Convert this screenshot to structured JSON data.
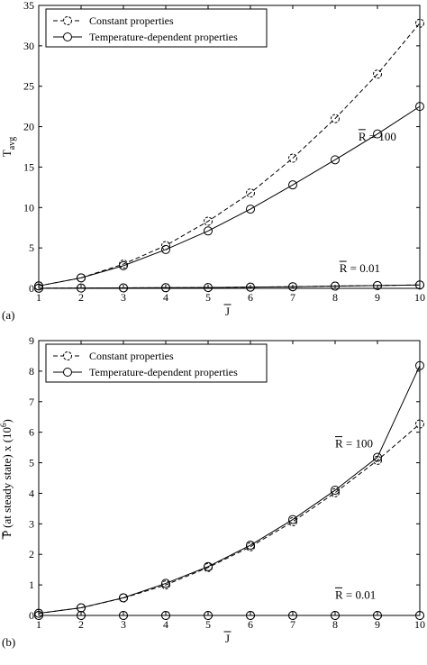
{
  "chart_data": [
    {
      "type": "line",
      "panel_label": "(a)",
      "xlabel": "J",
      "ylabel": "T",
      "ylabel_sub": "avg",
      "xlim": [
        1,
        10
      ],
      "ylim": [
        0,
        35
      ],
      "xticks": [
        1,
        2,
        3,
        4,
        5,
        6,
        7,
        8,
        9,
        10
      ],
      "yticks": [
        0,
        5,
        10,
        15,
        20,
        25,
        30,
        35
      ],
      "grid": false,
      "legend_position": "top-left",
      "x": [
        1,
        2,
        3,
        4,
        5,
        6,
        7,
        8,
        9,
        10
      ],
      "series": [
        {
          "name": "Constant properties",
          "style": "dashed",
          "group": "R100",
          "values": [
            0.3,
            1.3,
            3.0,
            5.3,
            8.3,
            11.8,
            16.1,
            21.0,
            26.5,
            32.8
          ]
        },
        {
          "name": "Temperature-dependent properties",
          "style": "solid",
          "group": "R100",
          "values": [
            0.3,
            1.3,
            2.8,
            4.8,
            7.1,
            9.8,
            12.8,
            15.9,
            19.1,
            22.5
          ]
        },
        {
          "style": "dashed",
          "group": "R001",
          "values": [
            0.02,
            0.04,
            0.06,
            0.08,
            0.1,
            0.15,
            0.2,
            0.28,
            0.35,
            0.42
          ]
        },
        {
          "style": "solid",
          "group": "R001",
          "values": [
            0.02,
            0.04,
            0.06,
            0.08,
            0.1,
            0.15,
            0.2,
            0.28,
            0.35,
            0.42
          ]
        }
      ],
      "annotations": [
        {
          "text": "R = 100",
          "x": 8.55,
          "y": 18.3
        },
        {
          "text": "R = 0.01",
          "x": 8.1,
          "y": 2.0
        }
      ]
    },
    {
      "type": "line",
      "panel_label": "(b)",
      "xlabel": "J",
      "ylabel": "P (at steady state) x (10",
      "ylabel_sup": "6",
      "ylabel_end": ")",
      "xlim": [
        1,
        10
      ],
      "ylim": [
        0,
        9
      ],
      "xticks": [
        1,
        2,
        3,
        4,
        5,
        6,
        7,
        8,
        9,
        10
      ],
      "yticks": [
        0,
        1,
        2,
        3,
        4,
        5,
        6,
        7,
        8,
        9
      ],
      "grid": false,
      "legend_position": "top-left",
      "x": [
        1,
        2,
        3,
        4,
        5,
        6,
        7,
        8,
        9,
        10
      ],
      "series": [
        {
          "name": "Constant properties",
          "style": "dashed",
          "group": "R100",
          "values": [
            0.07,
            0.25,
            0.57,
            1.0,
            1.57,
            2.25,
            3.07,
            4.02,
            5.08,
            6.27
          ]
        },
        {
          "name": "Temperature-dependent properties",
          "style": "solid",
          "group": "R100",
          "values": [
            0.07,
            0.25,
            0.58,
            1.05,
            1.6,
            2.3,
            3.14,
            4.1,
            5.18,
            8.18
          ]
        },
        {
          "style": "dashed",
          "group": "R001",
          "values": [
            0.0,
            0.0,
            0.0,
            0.0,
            0.0,
            0.0,
            0.0,
            0.0,
            0.0,
            0.0
          ]
        },
        {
          "style": "solid",
          "group": "R001",
          "values": [
            0.0,
            0.0,
            0.0,
            0.0,
            0.0,
            0.0,
            0.0,
            0.0,
            0.0,
            0.0
          ]
        }
      ],
      "annotations": [
        {
          "text": "R = 100",
          "x": 8.0,
          "y": 5.5
        },
        {
          "text": "R = 0.01",
          "x": 8.0,
          "y": 0.55
        }
      ]
    }
  ]
}
